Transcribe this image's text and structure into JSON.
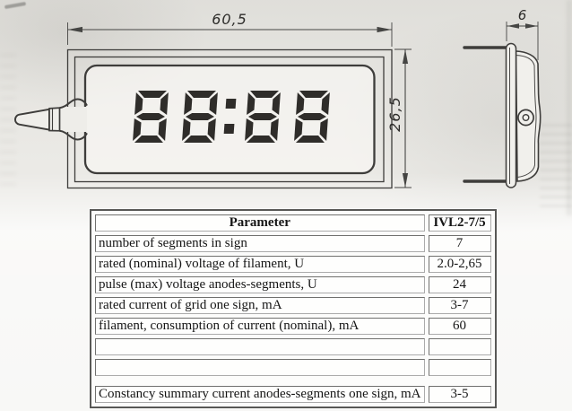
{
  "drawing": {
    "width_dimension": "60,5",
    "height_dimension": "26,5",
    "depth_dimension": "6",
    "display_value": "88:88"
  },
  "table": {
    "header": {
      "parameter": "Parameter",
      "model": "IVL2-7/5"
    },
    "rows": [
      {
        "parameter": "number of segments in sign",
        "value": "7"
      },
      {
        "parameter": "rated (nominal) voltage of filament, U",
        "value": "2.0-2,65"
      },
      {
        "parameter": "pulse (max) voltage anodes-segments, U",
        "value": "24"
      },
      {
        "parameter": "rated current of grid one sign, mA",
        "value": "3-7"
      },
      {
        "parameter": "filament, consumption of current (nominal), mA",
        "value": "60"
      },
      {
        "parameter": "",
        "value": ""
      },
      {
        "parameter": "",
        "value": ""
      },
      {
        "parameter": "Constancy summary current anodes-segments one sign, mA",
        "value": "3-5"
      }
    ]
  }
}
